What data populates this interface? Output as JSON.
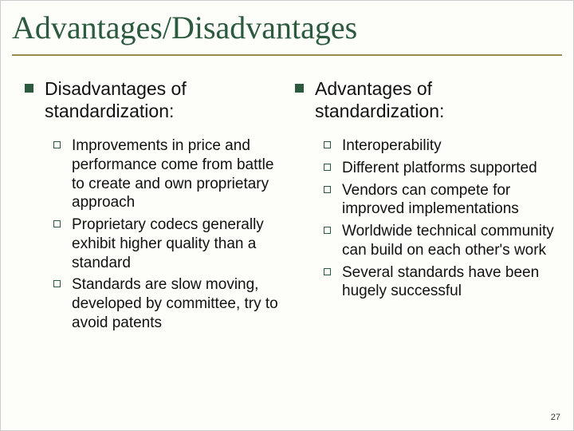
{
  "title": "Advantages/Disadvantages",
  "colors": {
    "title": "#2b5a3f",
    "rule": "#a08a4a",
    "bullet_fill": "#2b5a3f",
    "bullet_border": "#2b5a3f",
    "background": "#fdfdf9",
    "text": "#111111"
  },
  "typography": {
    "title_fontsize": 40,
    "heading_fontsize": 23,
    "body_fontsize": 19,
    "pagenum_fontsize": 11
  },
  "left": {
    "heading": "Disadvantages of standardization:",
    "items": [
      "Improvements in price and performance come from battle to create and own proprietary approach",
      "Proprietary codecs generally exhibit higher quality than a standard",
      "Standards are slow moving, developed by committee, try to avoid patents"
    ]
  },
  "right": {
    "heading": "Advantages of standardization:",
    "items": [
      "Interoperability",
      "Different platforms supported",
      "Vendors can compete for improved implementations",
      "Worldwide technical community can build on each other's work",
      "Several standards have been hugely successful"
    ]
  },
  "page_number": "27"
}
